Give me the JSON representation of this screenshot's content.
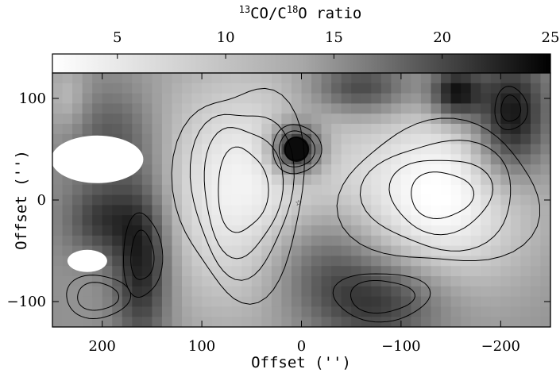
{
  "chart_data": {
    "type": "heatmap",
    "colorbar": {
      "label_parts": [
        "13",
        "CO/C",
        "18",
        "O ratio"
      ],
      "ticks": [
        5,
        10,
        15,
        20,
        25
      ],
      "range": [
        2,
        25
      ],
      "colormap": "white-to-black grayscale"
    },
    "xlabel": "Offset ('')",
    "ylabel": "Offset ('')",
    "xticks": [
      200,
      100,
      0,
      -100,
      -200
    ],
    "yticks": [
      100,
      0,
      -100
    ],
    "xlim": [
      250,
      -250
    ],
    "ylim": [
      -125,
      125
    ],
    "x_reversed": true,
    "contours": "black lines over the grayscale map",
    "features": [
      {
        "name": "central-peak",
        "x": 0,
        "y": 0,
        "ratio_note": "marked with a small star"
      },
      {
        "name": "dark-core",
        "x": 5,
        "y": 50,
        "ratio": 24
      },
      {
        "name": "low-ratio-plateau-east",
        "x": 60,
        "y": 10,
        "ratio": 5
      },
      {
        "name": "low-ratio-plateau-west",
        "x": -140,
        "y": 5,
        "ratio": 4
      },
      {
        "name": "blank-region-upper-left",
        "x": 205,
        "y": 40
      },
      {
        "name": "blank-region-lower-left",
        "x": 215,
        "y": -60
      }
    ]
  }
}
